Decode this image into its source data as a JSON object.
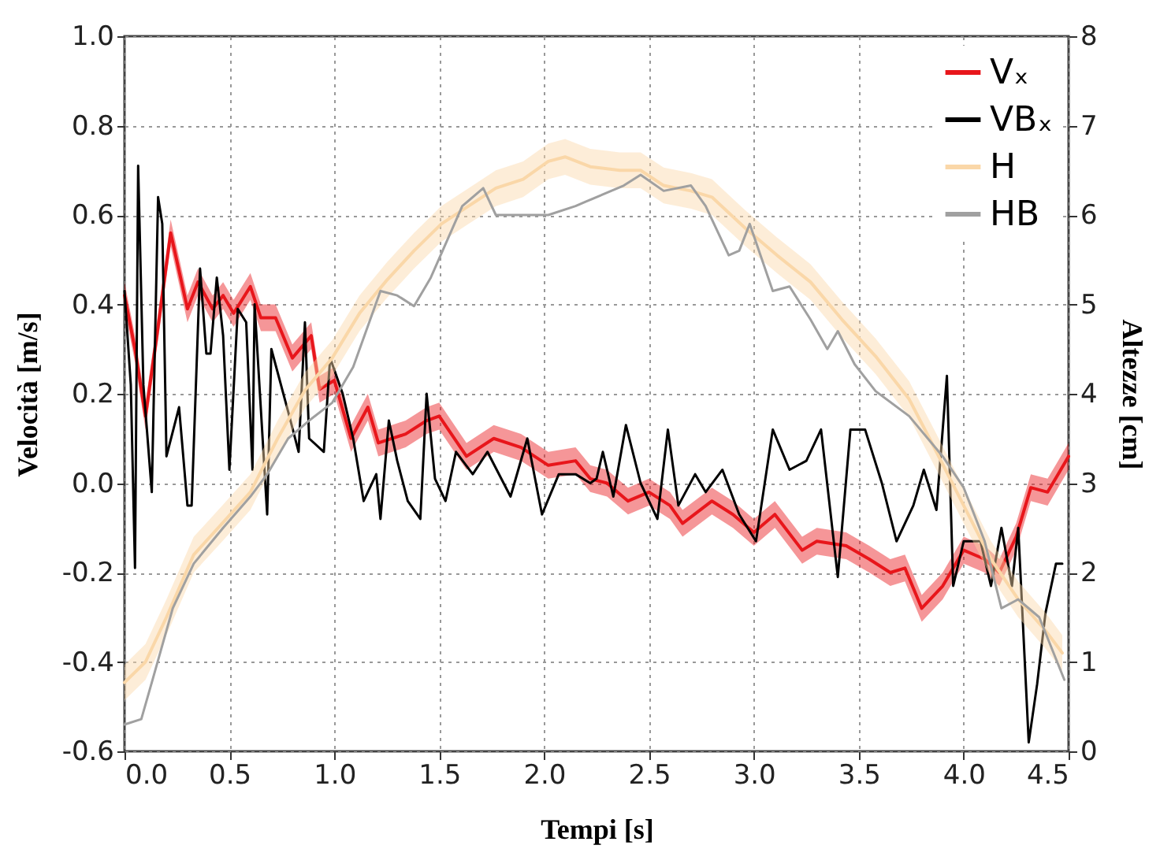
{
  "chart_data": {
    "type": "line",
    "xlabel": "Tempi [s]",
    "ylabel": "Velocità [m/s]",
    "y2label": "Altezze [cm]",
    "xlim": [
      0,
      4.5
    ],
    "ylim": [
      -0.6,
      1.0
    ],
    "y2lim": [
      0,
      8
    ],
    "xticks": [
      {
        "value": 0,
        "label": "0.0"
      },
      0.5,
      {
        "value": 1,
        "label": "1.0"
      },
      1.5,
      {
        "value": 2,
        "label": "2.0"
      },
      2.5,
      {
        "value": 3,
        "label": "3.0"
      },
      3.5,
      {
        "value": 4,
        "label": "4.0"
      },
      4.5
    ],
    "yticks": [
      -0.6,
      -0.4,
      -0.2,
      {
        "value": 0,
        "label": "0.0"
      },
      0.2,
      0.4,
      0.6,
      0.8,
      {
        "value": 1,
        "label": "1.0"
      }
    ],
    "y2ticks": [
      0,
      1,
      2,
      3,
      4,
      5,
      6,
      7,
      8
    ],
    "grid": true,
    "legend": "top right",
    "line_style": "solid",
    "series": [
      {
        "name": "Vₓ",
        "color": "#e8161b",
        "x": [
          0,
          0.05,
          0.1,
          0.16,
          0.22,
          0.3,
          0.35,
          0.42,
          0.47,
          0.52,
          0.6,
          0.65,
          0.72,
          0.8,
          0.89,
          0.93,
          1.0,
          1.08,
          1.16,
          1.21,
          1.34,
          1.44,
          1.5,
          1.63,
          1.76,
          1.89,
          2.02,
          2.15,
          2.22,
          2.3,
          2.4,
          2.5,
          2.6,
          2.66,
          2.8,
          2.9,
          3.0,
          3.1,
          3.23,
          3.3,
          3.44,
          3.55,
          3.65,
          3.72,
          3.8,
          3.9,
          4.0,
          4.1,
          4.17,
          4.25,
          4.32,
          4.4,
          4.45,
          4.5
        ],
        "values": [
          0.42,
          0.3,
          0.15,
          0.35,
          0.56,
          0.39,
          0.45,
          0.39,
          0.42,
          0.38,
          0.44,
          0.37,
          0.37,
          0.28,
          0.33,
          0.21,
          0.23,
          0.1,
          0.17,
          0.09,
          0.11,
          0.14,
          0.15,
          0.06,
          0.1,
          0.08,
          0.04,
          0.05,
          0.01,
          0.0,
          -0.04,
          -0.02,
          -0.05,
          -0.09,
          -0.04,
          -0.07,
          -0.11,
          -0.07,
          -0.15,
          -0.13,
          -0.14,
          -0.17,
          -0.2,
          -0.19,
          -0.28,
          -0.23,
          -0.15,
          -0.17,
          -0.2,
          -0.12,
          -0.01,
          -0.02,
          0.02,
          0.06
        ],
        "lower": [
          0.39,
          0.27,
          0.12,
          0.32,
          0.53,
          0.36,
          0.42,
          0.36,
          0.39,
          0.35,
          0.41,
          0.34,
          0.34,
          0.25,
          0.3,
          0.18,
          0.2,
          0.07,
          0.14,
          0.06,
          0.08,
          0.11,
          0.12,
          0.03,
          0.07,
          0.05,
          0.01,
          0.02,
          -0.02,
          -0.03,
          -0.07,
          -0.05,
          -0.08,
          -0.12,
          -0.07,
          -0.1,
          -0.14,
          -0.1,
          -0.18,
          -0.16,
          -0.17,
          -0.2,
          -0.23,
          -0.22,
          -0.31,
          -0.26,
          -0.18,
          -0.2,
          -0.23,
          -0.15,
          -0.04,
          -0.05,
          -0.01,
          0.03
        ],
        "upper": [
          0.45,
          0.33,
          0.18,
          0.38,
          0.59,
          0.42,
          0.48,
          0.42,
          0.45,
          0.41,
          0.47,
          0.4,
          0.4,
          0.31,
          0.36,
          0.24,
          0.26,
          0.13,
          0.2,
          0.12,
          0.14,
          0.17,
          0.18,
          0.09,
          0.13,
          0.11,
          0.07,
          0.08,
          0.04,
          0.03,
          -0.01,
          0.01,
          -0.02,
          -0.06,
          -0.01,
          -0.04,
          -0.08,
          -0.04,
          -0.12,
          -0.1,
          -0.11,
          -0.14,
          -0.17,
          -0.16,
          -0.25,
          -0.2,
          -0.12,
          -0.14,
          -0.17,
          -0.09,
          0.02,
          0.01,
          0.05,
          0.09
        ]
      },
      {
        "name": "VBₓ",
        "color": "#000000",
        "x": [
          0,
          0.03,
          0.05,
          0.065,
          0.09,
          0.13,
          0.16,
          0.18,
          0.2,
          0.26,
          0.3,
          0.32,
          0.36,
          0.39,
          0.41,
          0.44,
          0.47,
          0.5,
          0.54,
          0.58,
          0.61,
          0.62,
          0.68,
          0.7,
          0.78,
          0.83,
          0.86,
          0.88,
          0.95,
          0.98,
          1.04,
          1.09,
          1.14,
          1.2,
          1.22,
          1.26,
          1.3,
          1.35,
          1.41,
          1.44,
          1.48,
          1.53,
          1.58,
          1.66,
          1.73,
          1.84,
          1.92,
          1.99,
          2.07,
          2.15,
          2.22,
          2.25,
          2.28,
          2.33,
          2.39,
          2.46,
          2.54,
          2.59,
          2.64,
          2.72,
          2.77,
          2.85,
          2.93,
          3.01,
          3.09,
          3.17,
          3.25,
          3.32,
          3.4,
          3.46,
          3.53,
          3.61,
          3.68,
          3.76,
          3.81,
          3.87,
          3.92,
          3.95,
          4.0,
          4.08,
          4.13,
          4.18,
          4.23,
          4.26,
          4.31,
          4.35,
          4.39,
          4.44,
          4.47
        ],
        "values": [
          0.43,
          0.22,
          -0.19,
          0.71,
          0.22,
          -0.02,
          0.64,
          0.58,
          0.06,
          0.17,
          -0.05,
          -0.05,
          0.48,
          0.29,
          0.29,
          0.46,
          0.33,
          0.03,
          0.39,
          0.36,
          0.03,
          0.4,
          -0.07,
          0.3,
          0.16,
          0.07,
          0.36,
          0.1,
          0.07,
          0.28,
          0.2,
          0.1,
          -0.04,
          0.02,
          -0.08,
          0.14,
          0.05,
          -0.04,
          -0.08,
          0.2,
          0.01,
          -0.04,
          0.07,
          0.02,
          0.07,
          -0.03,
          0.1,
          -0.07,
          0.02,
          0.02,
          0.0,
          0.01,
          0.07,
          -0.03,
          0.13,
          0.0,
          -0.08,
          0.12,
          -0.05,
          0.02,
          -0.02,
          0.03,
          -0.07,
          -0.13,
          0.12,
          0.03,
          0.05,
          0.12,
          -0.21,
          0.12,
          0.12,
          0.0,
          -0.13,
          -0.05,
          0.03,
          -0.06,
          0.24,
          -0.23,
          -0.13,
          -0.13,
          -0.23,
          -0.1,
          -0.23,
          -0.1,
          -0.58,
          -0.45,
          -0.29,
          -0.18,
          -0.18
        ]
      },
      {
        "name": "H",
        "color": "#fad7a8",
        "axis": "y2",
        "x": [
          0,
          0.1,
          0.2,
          0.33,
          0.47,
          0.6,
          0.73,
          0.86,
          0.99,
          1.12,
          1.25,
          1.38,
          1.51,
          1.64,
          1.77,
          1.9,
          2.02,
          2.1,
          2.22,
          2.36,
          2.46,
          2.57,
          2.7,
          2.8,
          2.96,
          3.11,
          3.27,
          3.42,
          3.58,
          3.74,
          3.87,
          4.0,
          4.13,
          4.26,
          4.39,
          4.47
        ],
        "values": [
          0.77,
          1.0,
          1.5,
          2.2,
          2.56,
          2.9,
          3.5,
          4.04,
          4.4,
          4.9,
          5.27,
          5.6,
          5.9,
          6.1,
          6.3,
          6.4,
          6.6,
          6.65,
          6.54,
          6.5,
          6.5,
          6.33,
          6.27,
          6.2,
          5.85,
          5.55,
          5.25,
          4.83,
          4.42,
          3.94,
          3.35,
          2.75,
          2.15,
          1.7,
          1.35,
          1.1
        ],
        "lower": [
          0.57,
          0.8,
          1.3,
          2.0,
          2.36,
          2.7,
          3.3,
          3.84,
          4.2,
          4.7,
          5.07,
          5.4,
          5.7,
          5.9,
          6.1,
          6.2,
          6.4,
          6.45,
          6.34,
          6.3,
          6.3,
          6.13,
          6.07,
          6.0,
          5.65,
          5.35,
          5.05,
          4.63,
          4.22,
          3.74,
          3.15,
          2.55,
          1.95,
          1.5,
          1.15,
          0.9
        ],
        "upper": [
          0.97,
          1.2,
          1.7,
          2.4,
          2.76,
          3.1,
          3.7,
          4.24,
          4.6,
          5.1,
          5.47,
          5.8,
          6.1,
          6.3,
          6.5,
          6.6,
          6.8,
          6.85,
          6.74,
          6.7,
          6.7,
          6.53,
          6.47,
          6.4,
          6.05,
          5.75,
          5.45,
          5.03,
          4.62,
          4.14,
          3.55,
          2.95,
          2.35,
          1.9,
          1.55,
          1.3
        ]
      },
      {
        "name": "HB",
        "color": "#a0a0a0",
        "axis": "y2",
        "x": [
          0,
          0.08,
          0.13,
          0.23,
          0.33,
          0.47,
          0.6,
          0.68,
          0.78,
          0.88,
          0.99,
          1.09,
          1.22,
          1.3,
          1.38,
          1.46,
          1.61,
          1.71,
          1.77,
          2.02,
          2.15,
          2.2,
          2.38,
          2.46,
          2.57,
          2.7,
          2.77,
          2.88,
          2.93,
          2.98,
          3.09,
          3.17,
          3.27,
          3.35,
          3.4,
          3.48,
          3.58,
          3.74,
          3.9,
          4.0,
          4.1,
          4.18,
          4.26,
          4.36,
          4.48
        ],
        "values": [
          0.3,
          0.36,
          0.77,
          1.6,
          2.1,
          2.5,
          2.85,
          3.1,
          3.5,
          3.7,
          3.9,
          4.3,
          5.15,
          5.1,
          4.98,
          5.3,
          6.1,
          6.3,
          6.0,
          6.0,
          6.1,
          6.15,
          6.33,
          6.45,
          6.27,
          6.33,
          6.1,
          5.55,
          5.6,
          5.9,
          5.15,
          5.2,
          4.83,
          4.5,
          4.7,
          4.33,
          4.03,
          3.75,
          3.3,
          2.95,
          2.35,
          1.6,
          1.7,
          1.5,
          0.8
        ]
      }
    ]
  }
}
